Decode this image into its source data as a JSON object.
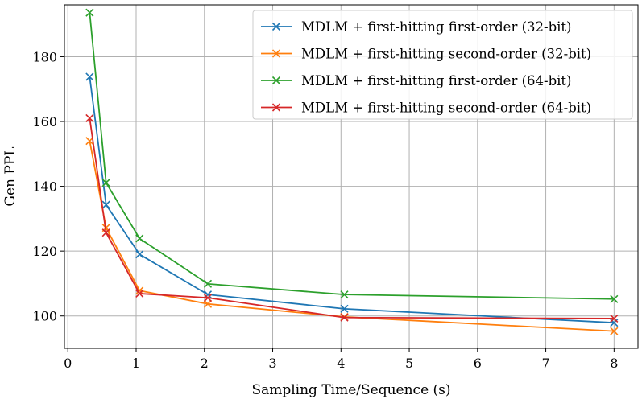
{
  "chart_data": {
    "type": "line",
    "title": "",
    "xlabel": "Sampling Time/Sequence (s)",
    "ylabel": "Gen PPL",
    "xlim": [
      -0.05,
      8.35
    ],
    "ylim": [
      90,
      196
    ],
    "xticks": [
      0,
      1,
      2,
      3,
      4,
      5,
      6,
      7,
      8
    ],
    "yticks": [
      100,
      120,
      140,
      160,
      180
    ],
    "grid": true,
    "legend_position": "upper right",
    "marker": "x",
    "series": [
      {
        "name": "MDLM + first-hitting first-order (32-bit)",
        "color": "#1f77b4",
        "x": [
          0.32,
          0.56,
          1.05,
          2.05,
          4.05,
          8.0
        ],
        "y": [
          173.8,
          134.3,
          119.0,
          106.6,
          102.2,
          97.9
        ]
      },
      {
        "name": "MDLM + first-hitting second-order (32-bit)",
        "color": "#ff7f0e",
        "x": [
          0.32,
          0.56,
          1.05,
          2.05,
          4.05,
          8.0
        ],
        "y": [
          154.0,
          127.2,
          107.8,
          103.7,
          99.7,
          95.3
        ]
      },
      {
        "name": "MDLM + first-hitting first-order (64-bit)",
        "color": "#2ca02c",
        "x": [
          0.32,
          0.56,
          1.05,
          2.05,
          4.05,
          8.0
        ],
        "y": [
          193.6,
          141.1,
          123.9,
          109.9,
          106.6,
          105.2
        ]
      },
      {
        "name": "MDLM + first-hitting second-order (64-bit)",
        "color": "#d62728",
        "x": [
          0.32,
          0.56,
          1.05,
          2.05,
          4.05,
          8.0
        ],
        "y": [
          161.0,
          125.7,
          106.9,
          105.6,
          99.5,
          99.2
        ]
      }
    ]
  }
}
